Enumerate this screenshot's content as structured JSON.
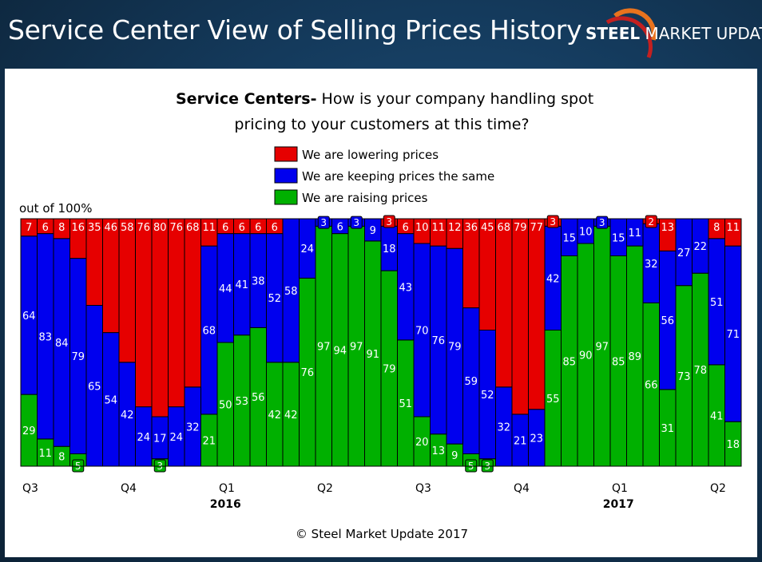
{
  "header": {
    "title": "Service Center View of Selling Prices History",
    "logo_word1": "STEEL",
    "logo_word2": "MARKET UPDATE"
  },
  "footer": {
    "copyright": "© Steel Market Update 2017"
  },
  "colors": {
    "lowering": "#e60000",
    "same": "#0000ee",
    "raising": "#00b000"
  },
  "chart_data": {
    "type": "bar",
    "stacked": true,
    "title_bold": "Service Centers-",
    "title_rest": " How is your company handling spot",
    "title_line2": "pricing to your customers at this time?",
    "ylabel": "out of 100%",
    "ylim": [
      0,
      100
    ],
    "legend": [
      {
        "key": "lowering",
        "label": "We are lowering prices"
      },
      {
        "key": "same",
        "label": "We are keeping prices the same"
      },
      {
        "key": "raising",
        "label": "We are raising prices"
      }
    ],
    "quarter_ticks": [
      {
        "label": "Q3",
        "bar_index": 0
      },
      {
        "label": "Q4",
        "bar_index": 6
      },
      {
        "label": "Q1",
        "bar_index": 12
      },
      {
        "label": "Q2",
        "bar_index": 18
      },
      {
        "label": "Q3",
        "bar_index": 24
      },
      {
        "label": "Q4",
        "bar_index": 30
      },
      {
        "label": "Q1",
        "bar_index": 36
      },
      {
        "label": "Q2",
        "bar_index": 42
      }
    ],
    "year_ticks": [
      {
        "label": "2016",
        "bar_index": 12
      },
      {
        "label": "2017",
        "bar_index": 36
      }
    ],
    "series": [
      {
        "name": "We are raising prices",
        "key": "raising",
        "values": [
          29,
          11,
          8,
          5,
          0,
          0,
          0,
          0,
          3,
          0,
          0,
          21,
          50,
          53,
          56,
          42,
          42,
          76,
          97,
          94,
          97,
          91,
          79,
          51,
          20,
          13,
          9,
          5,
          3,
          0,
          0,
          0,
          55,
          85,
          90,
          97,
          85,
          89,
          66,
          31,
          73,
          78,
          41,
          18
        ]
      },
      {
        "name": "We are keeping prices the same",
        "key": "same",
        "values": [
          64,
          83,
          84,
          79,
          65,
          54,
          42,
          24,
          17,
          24,
          32,
          68,
          44,
          41,
          38,
          52,
          58,
          24,
          3,
          6,
          3,
          9,
          18,
          43,
          70,
          76,
          79,
          59,
          52,
          32,
          21,
          23,
          42,
          15,
          10,
          3,
          15,
          11,
          32,
          56,
          27,
          22,
          51,
          71
        ]
      },
      {
        "name": "We are lowering prices",
        "key": "lowering",
        "values": [
          7,
          6,
          8,
          16,
          35,
          46,
          58,
          76,
          80,
          76,
          68,
          11,
          6,
          6,
          6,
          6,
          0,
          0,
          0,
          0,
          0,
          0,
          3,
          6,
          10,
          11,
          12,
          36,
          45,
          68,
          79,
          77,
          3,
          0,
          0,
          0,
          0,
          0,
          2,
          13,
          0,
          0,
          8,
          11
        ]
      }
    ]
  }
}
